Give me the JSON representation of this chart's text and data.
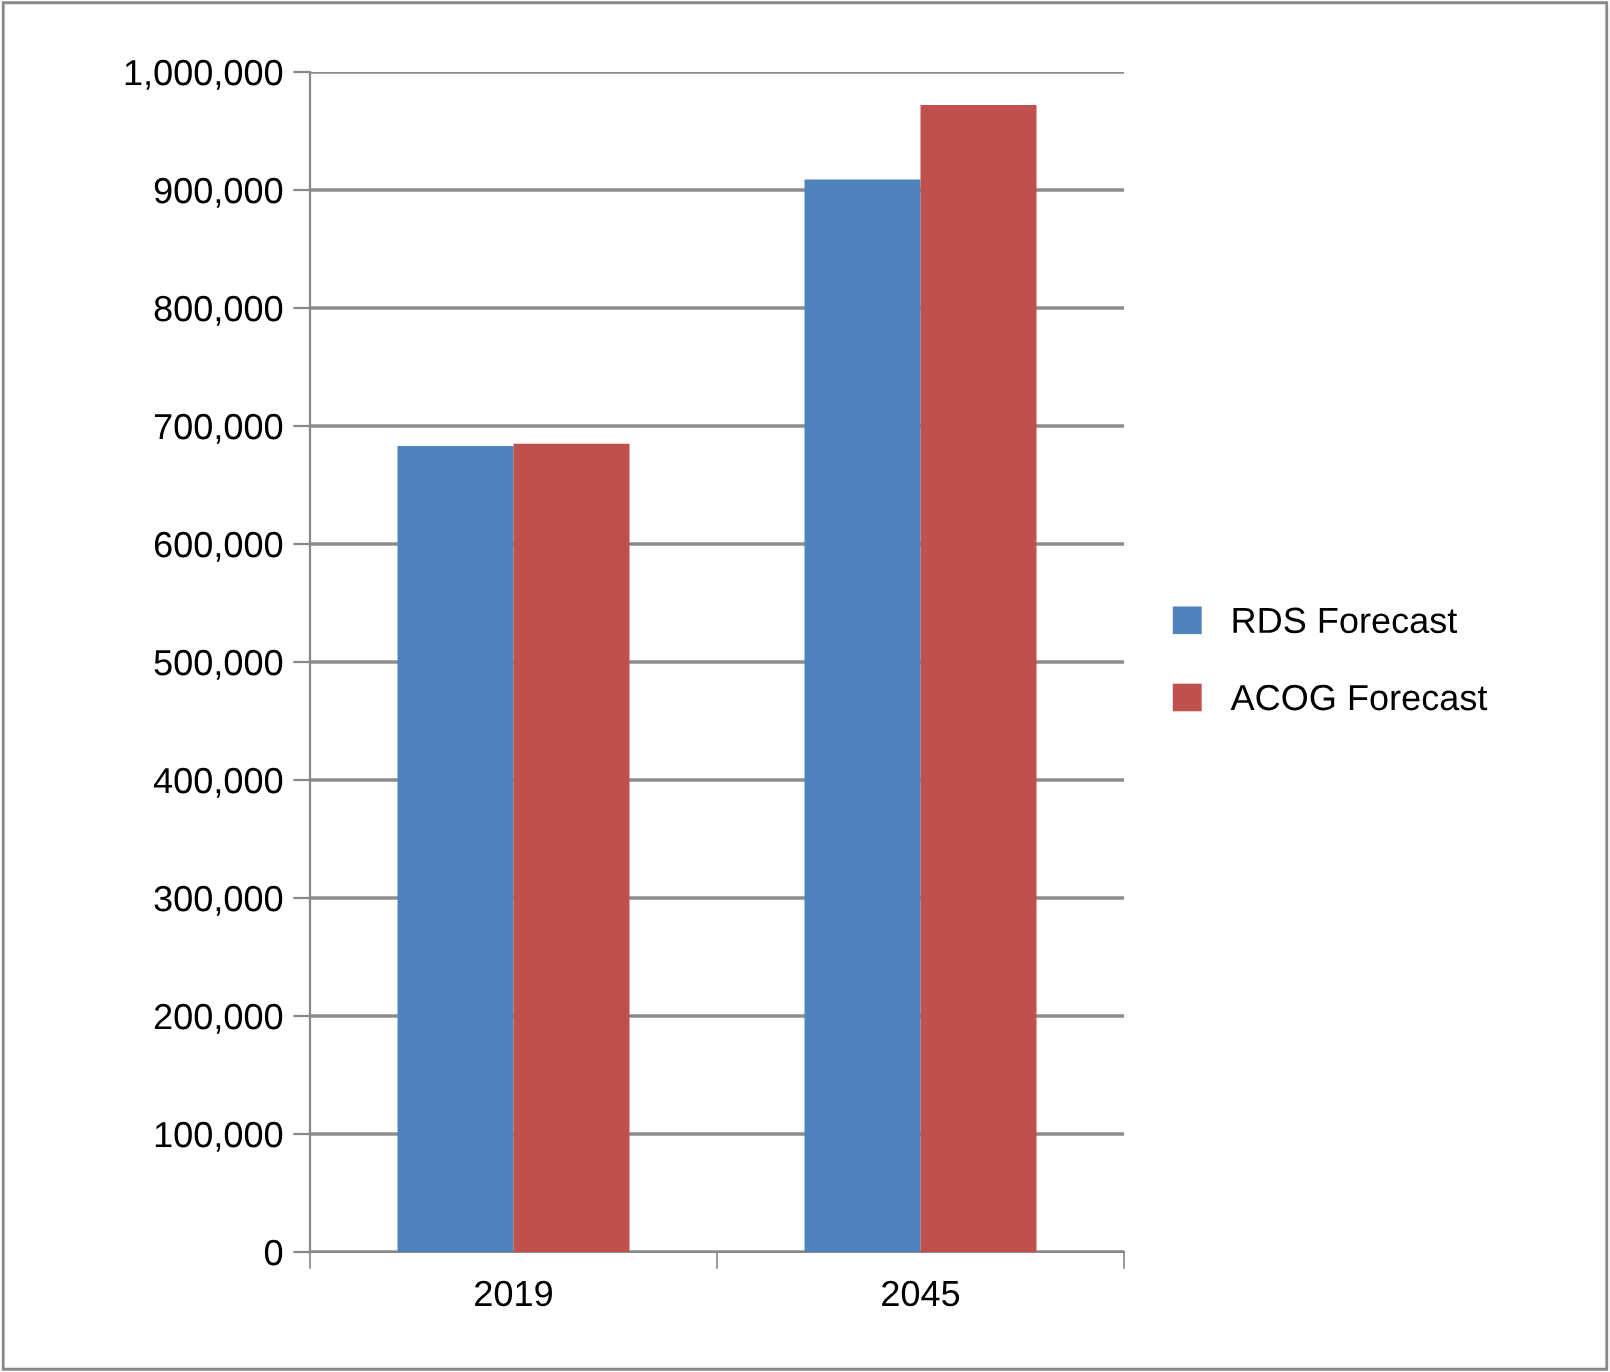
{
  "chart_data": {
    "type": "bar",
    "categories": [
      "2019",
      "2045"
    ],
    "series": [
      {
        "name": "RDS Forecast",
        "color": "#4f81bd",
        "values": [
          683000,
          909000
        ]
      },
      {
        "name": "ACOG Forecast",
        "color": "#c0504d",
        "values": [
          685000,
          972000
        ]
      }
    ],
    "ylim": [
      0,
      1000000
    ],
    "yticks": [
      {
        "value": 0,
        "label": "0"
      },
      {
        "value": 100000,
        "label": "100,000"
      },
      {
        "value": 200000,
        "label": "200,000"
      },
      {
        "value": 300000,
        "label": "300,000"
      },
      {
        "value": 400000,
        "label": "400,000"
      },
      {
        "value": 500000,
        "label": "500,000"
      },
      {
        "value": 600000,
        "label": "600,000"
      },
      {
        "value": 700000,
        "label": "700,000"
      },
      {
        "value": 800000,
        "label": "800,000"
      },
      {
        "value": 900000,
        "label": "900,000"
      },
      {
        "value": 1000000,
        "label": "1,000,000"
      }
    ],
    "grid": "y",
    "legend": "right"
  }
}
